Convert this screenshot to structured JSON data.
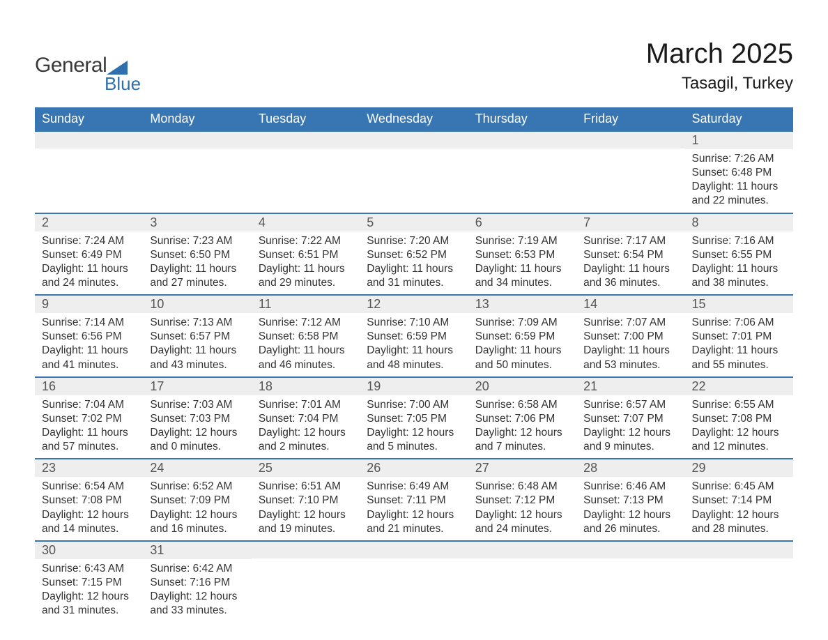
{
  "brand": {
    "name_part1": "General",
    "name_part2": "Blue",
    "text_color": "#3a3a3a",
    "accent_color": "#2f6fad"
  },
  "title": {
    "month": "March 2025",
    "location": "Tasagil, Turkey",
    "month_fontsize": 40,
    "location_fontsize": 24,
    "color": "#1a1a1a"
  },
  "style": {
    "header_bg": "#3876b3",
    "header_text": "#ffffff",
    "daynum_bg": "#eeeeee",
    "daynum_color": "#555555",
    "detail_color": "#333333",
    "row_border_color": "#3876b3",
    "body_bg": "#ffffff",
    "header_fontsize": 18,
    "daynum_fontsize": 18,
    "detail_fontsize": 15.5
  },
  "weekdays": [
    "Sunday",
    "Monday",
    "Tuesday",
    "Wednesday",
    "Thursday",
    "Friday",
    "Saturday"
  ],
  "weeks": [
    [
      {
        "day": "",
        "sunrise": "",
        "sunset": "",
        "daylight": ""
      },
      {
        "day": "",
        "sunrise": "",
        "sunset": "",
        "daylight": ""
      },
      {
        "day": "",
        "sunrise": "",
        "sunset": "",
        "daylight": ""
      },
      {
        "day": "",
        "sunrise": "",
        "sunset": "",
        "daylight": ""
      },
      {
        "day": "",
        "sunrise": "",
        "sunset": "",
        "daylight": ""
      },
      {
        "day": "",
        "sunrise": "",
        "sunset": "",
        "daylight": ""
      },
      {
        "day": "1",
        "sunrise": "Sunrise: 7:26 AM",
        "sunset": "Sunset: 6:48 PM",
        "daylight": "Daylight: 11 hours and 22 minutes."
      }
    ],
    [
      {
        "day": "2",
        "sunrise": "Sunrise: 7:24 AM",
        "sunset": "Sunset: 6:49 PM",
        "daylight": "Daylight: 11 hours and 24 minutes."
      },
      {
        "day": "3",
        "sunrise": "Sunrise: 7:23 AM",
        "sunset": "Sunset: 6:50 PM",
        "daylight": "Daylight: 11 hours and 27 minutes."
      },
      {
        "day": "4",
        "sunrise": "Sunrise: 7:22 AM",
        "sunset": "Sunset: 6:51 PM",
        "daylight": "Daylight: 11 hours and 29 minutes."
      },
      {
        "day": "5",
        "sunrise": "Sunrise: 7:20 AM",
        "sunset": "Sunset: 6:52 PM",
        "daylight": "Daylight: 11 hours and 31 minutes."
      },
      {
        "day": "6",
        "sunrise": "Sunrise: 7:19 AM",
        "sunset": "Sunset: 6:53 PM",
        "daylight": "Daylight: 11 hours and 34 minutes."
      },
      {
        "day": "7",
        "sunrise": "Sunrise: 7:17 AM",
        "sunset": "Sunset: 6:54 PM",
        "daylight": "Daylight: 11 hours and 36 minutes."
      },
      {
        "day": "8",
        "sunrise": "Sunrise: 7:16 AM",
        "sunset": "Sunset: 6:55 PM",
        "daylight": "Daylight: 11 hours and 38 minutes."
      }
    ],
    [
      {
        "day": "9",
        "sunrise": "Sunrise: 7:14 AM",
        "sunset": "Sunset: 6:56 PM",
        "daylight": "Daylight: 11 hours and 41 minutes."
      },
      {
        "day": "10",
        "sunrise": "Sunrise: 7:13 AM",
        "sunset": "Sunset: 6:57 PM",
        "daylight": "Daylight: 11 hours and 43 minutes."
      },
      {
        "day": "11",
        "sunrise": "Sunrise: 7:12 AM",
        "sunset": "Sunset: 6:58 PM",
        "daylight": "Daylight: 11 hours and 46 minutes."
      },
      {
        "day": "12",
        "sunrise": "Sunrise: 7:10 AM",
        "sunset": "Sunset: 6:59 PM",
        "daylight": "Daylight: 11 hours and 48 minutes."
      },
      {
        "day": "13",
        "sunrise": "Sunrise: 7:09 AM",
        "sunset": "Sunset: 6:59 PM",
        "daylight": "Daylight: 11 hours and 50 minutes."
      },
      {
        "day": "14",
        "sunrise": "Sunrise: 7:07 AM",
        "sunset": "Sunset: 7:00 PM",
        "daylight": "Daylight: 11 hours and 53 minutes."
      },
      {
        "day": "15",
        "sunrise": "Sunrise: 7:06 AM",
        "sunset": "Sunset: 7:01 PM",
        "daylight": "Daylight: 11 hours and 55 minutes."
      }
    ],
    [
      {
        "day": "16",
        "sunrise": "Sunrise: 7:04 AM",
        "sunset": "Sunset: 7:02 PM",
        "daylight": "Daylight: 11 hours and 57 minutes."
      },
      {
        "day": "17",
        "sunrise": "Sunrise: 7:03 AM",
        "sunset": "Sunset: 7:03 PM",
        "daylight": "Daylight: 12 hours and 0 minutes."
      },
      {
        "day": "18",
        "sunrise": "Sunrise: 7:01 AM",
        "sunset": "Sunset: 7:04 PM",
        "daylight": "Daylight: 12 hours and 2 minutes."
      },
      {
        "day": "19",
        "sunrise": "Sunrise: 7:00 AM",
        "sunset": "Sunset: 7:05 PM",
        "daylight": "Daylight: 12 hours and 5 minutes."
      },
      {
        "day": "20",
        "sunrise": "Sunrise: 6:58 AM",
        "sunset": "Sunset: 7:06 PM",
        "daylight": "Daylight: 12 hours and 7 minutes."
      },
      {
        "day": "21",
        "sunrise": "Sunrise: 6:57 AM",
        "sunset": "Sunset: 7:07 PM",
        "daylight": "Daylight: 12 hours and 9 minutes."
      },
      {
        "day": "22",
        "sunrise": "Sunrise: 6:55 AM",
        "sunset": "Sunset: 7:08 PM",
        "daylight": "Daylight: 12 hours and 12 minutes."
      }
    ],
    [
      {
        "day": "23",
        "sunrise": "Sunrise: 6:54 AM",
        "sunset": "Sunset: 7:08 PM",
        "daylight": "Daylight: 12 hours and 14 minutes."
      },
      {
        "day": "24",
        "sunrise": "Sunrise: 6:52 AM",
        "sunset": "Sunset: 7:09 PM",
        "daylight": "Daylight: 12 hours and 16 minutes."
      },
      {
        "day": "25",
        "sunrise": "Sunrise: 6:51 AM",
        "sunset": "Sunset: 7:10 PM",
        "daylight": "Daylight: 12 hours and 19 minutes."
      },
      {
        "day": "26",
        "sunrise": "Sunrise: 6:49 AM",
        "sunset": "Sunset: 7:11 PM",
        "daylight": "Daylight: 12 hours and 21 minutes."
      },
      {
        "day": "27",
        "sunrise": "Sunrise: 6:48 AM",
        "sunset": "Sunset: 7:12 PM",
        "daylight": "Daylight: 12 hours and 24 minutes."
      },
      {
        "day": "28",
        "sunrise": "Sunrise: 6:46 AM",
        "sunset": "Sunset: 7:13 PM",
        "daylight": "Daylight: 12 hours and 26 minutes."
      },
      {
        "day": "29",
        "sunrise": "Sunrise: 6:45 AM",
        "sunset": "Sunset: 7:14 PM",
        "daylight": "Daylight: 12 hours and 28 minutes."
      }
    ],
    [
      {
        "day": "30",
        "sunrise": "Sunrise: 6:43 AM",
        "sunset": "Sunset: 7:15 PM",
        "daylight": "Daylight: 12 hours and 31 minutes."
      },
      {
        "day": "31",
        "sunrise": "Sunrise: 6:42 AM",
        "sunset": "Sunset: 7:16 PM",
        "daylight": "Daylight: 12 hours and 33 minutes."
      },
      {
        "day": "",
        "sunrise": "",
        "sunset": "",
        "daylight": ""
      },
      {
        "day": "",
        "sunrise": "",
        "sunset": "",
        "daylight": ""
      },
      {
        "day": "",
        "sunrise": "",
        "sunset": "",
        "daylight": ""
      },
      {
        "day": "",
        "sunrise": "",
        "sunset": "",
        "daylight": ""
      },
      {
        "day": "",
        "sunrise": "",
        "sunset": "",
        "daylight": ""
      }
    ]
  ]
}
